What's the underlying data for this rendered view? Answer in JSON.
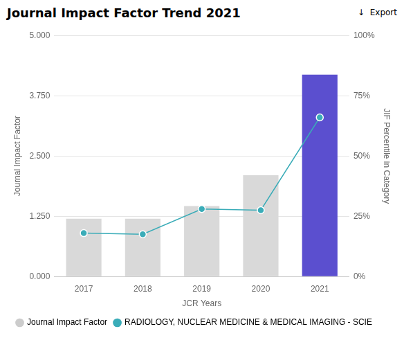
{
  "chart_data": {
    "type": "bar",
    "title": "Journal Impact Factor Trend 2021",
    "annotations": [
      "↓  Export"
    ],
    "xlabel": "JCR Years",
    "ylabel": "Journal Impact Factor",
    "y2label": "JIF Percentile in Category",
    "categories": [
      "2017",
      "2018",
      "2019",
      "2020",
      "2021"
    ],
    "series": [
      {
        "name": "Journal Impact Factor",
        "type": "bar",
        "color": "#cccccc",
        "colors": [
          "#d9d9d9",
          "#d9d9d9",
          "#d9d9d9",
          "#d9d9d9",
          "#5b4fcf"
        ],
        "values": [
          1.2,
          1.2,
          1.46,
          2.1,
          4.186
        ]
      },
      {
        "name": "RADIOLOGY, NUCLEAR MEDICINE & MEDICAL IMAGING - SCIE",
        "type": "line",
        "color": "#3aacb8",
        "marker": "circle",
        "axis": "y2",
        "values": [
          18.0,
          17.5,
          28.0,
          27.5,
          66.0
        ]
      }
    ],
    "ylim": [
      0,
      5.0
    ],
    "yticks": [
      {
        "value": 0.0,
        "label": "0.000"
      },
      {
        "value": 1.25,
        "label": "1.250"
      },
      {
        "value": 2.5,
        "label": "2.500"
      },
      {
        "value": 3.75,
        "label": "3.750"
      },
      {
        "value": 5.0,
        "label": "5.000"
      }
    ],
    "y2lim": [
      0,
      100
    ],
    "y2ticks": [
      {
        "value": 0,
        "label": "0%"
      },
      {
        "value": 25,
        "label": "25%"
      },
      {
        "value": 50,
        "label": "50%"
      },
      {
        "value": 75,
        "label": "75%"
      },
      {
        "value": 100,
        "label": "100%"
      }
    ],
    "grid": true,
    "legend": "bottom"
  }
}
